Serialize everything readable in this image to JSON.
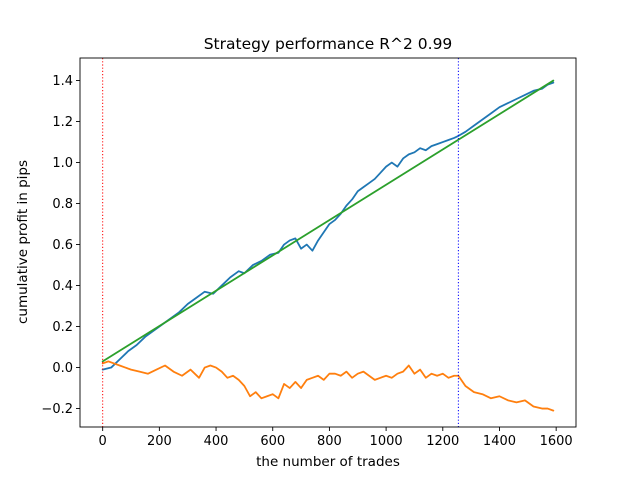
{
  "chart_data": {
    "type": "line",
    "title": "Strategy performance R^2 0.99",
    "xlabel": "the number of trades",
    "ylabel": "cumulative profit in pips",
    "xlim": [
      -80,
      1670
    ],
    "ylim": [
      -0.29,
      1.51
    ],
    "xticks": [
      0,
      200,
      400,
      600,
      800,
      1000,
      1200,
      1400,
      1600
    ],
    "xtick_labels": [
      "0",
      "200",
      "400",
      "600",
      "800",
      "1000",
      "1200",
      "1400",
      "1600"
    ],
    "yticks": [
      -0.2,
      0.0,
      0.2,
      0.4,
      0.6,
      0.8,
      1.0,
      1.2,
      1.4
    ],
    "ytick_labels": [
      "−0.2",
      "0.0",
      "0.2",
      "0.4",
      "0.6",
      "0.8",
      "1.0",
      "1.2",
      "1.4"
    ],
    "grid": false,
    "legend": false,
    "vlines": [
      {
        "x": 0,
        "color": "#ff0000",
        "style": "dotted"
      },
      {
        "x": 1255,
        "color": "#0000ff",
        "style": "dotted"
      }
    ],
    "series": [
      {
        "color": "#1f77b4",
        "x": [
          0,
          30,
          60,
          90,
          120,
          150,
          180,
          210,
          240,
          270,
          300,
          330,
          360,
          390,
          420,
          450,
          480,
          500,
          530,
          560,
          590,
          620,
          640,
          660,
          680,
          700,
          720,
          740,
          760,
          780,
          800,
          820,
          840,
          860,
          880,
          900,
          920,
          940,
          960,
          980,
          1000,
          1020,
          1040,
          1060,
          1080,
          1100,
          1120,
          1140,
          1160,
          1180,
          1200,
          1220,
          1240,
          1255,
          1280,
          1310,
          1340,
          1370,
          1400,
          1430,
          1460,
          1490,
          1520,
          1550,
          1570,
          1590
        ],
        "values": [
          -0.01,
          0.0,
          0.04,
          0.08,
          0.11,
          0.15,
          0.18,
          0.21,
          0.24,
          0.27,
          0.31,
          0.34,
          0.37,
          0.36,
          0.4,
          0.44,
          0.47,
          0.46,
          0.5,
          0.52,
          0.55,
          0.56,
          0.6,
          0.62,
          0.63,
          0.58,
          0.6,
          0.57,
          0.62,
          0.66,
          0.7,
          0.72,
          0.75,
          0.79,
          0.82,
          0.86,
          0.88,
          0.9,
          0.92,
          0.95,
          0.98,
          1.0,
          0.98,
          1.02,
          1.04,
          1.05,
          1.07,
          1.06,
          1.08,
          1.09,
          1.1,
          1.11,
          1.12,
          1.13,
          1.15,
          1.18,
          1.21,
          1.24,
          1.27,
          1.29,
          1.31,
          1.33,
          1.35,
          1.36,
          1.38,
          1.39
        ]
      },
      {
        "color": "#ff7f0e",
        "x": [
          0,
          20,
          40,
          60,
          80,
          100,
          130,
          160,
          190,
          220,
          250,
          280,
          310,
          340,
          360,
          380,
          400,
          420,
          440,
          460,
          480,
          500,
          520,
          540,
          560,
          580,
          600,
          620,
          640,
          660,
          680,
          700,
          720,
          740,
          760,
          780,
          800,
          820,
          840,
          860,
          880,
          900,
          920,
          940,
          960,
          980,
          1000,
          1020,
          1040,
          1060,
          1080,
          1100,
          1120,
          1140,
          1160,
          1180,
          1200,
          1220,
          1240,
          1255,
          1280,
          1310,
          1340,
          1370,
          1400,
          1430,
          1460,
          1490,
          1520,
          1550,
          1570,
          1590
        ],
        "values": [
          0.02,
          0.03,
          0.02,
          0.01,
          0.0,
          -0.01,
          -0.02,
          -0.03,
          -0.01,
          0.01,
          -0.02,
          -0.04,
          -0.01,
          -0.05,
          0.0,
          0.01,
          0.0,
          -0.02,
          -0.05,
          -0.04,
          -0.06,
          -0.09,
          -0.14,
          -0.12,
          -0.15,
          -0.14,
          -0.13,
          -0.15,
          -0.08,
          -0.1,
          -0.07,
          -0.1,
          -0.06,
          -0.05,
          -0.04,
          -0.06,
          -0.03,
          -0.03,
          -0.04,
          -0.02,
          -0.05,
          -0.03,
          -0.02,
          -0.04,
          -0.06,
          -0.05,
          -0.04,
          -0.05,
          -0.03,
          -0.02,
          0.01,
          -0.03,
          -0.01,
          -0.05,
          -0.03,
          -0.04,
          -0.03,
          -0.05,
          -0.04,
          -0.04,
          -0.09,
          -0.12,
          -0.13,
          -0.15,
          -0.14,
          -0.16,
          -0.17,
          -0.16,
          -0.19,
          -0.2,
          -0.2,
          -0.21
        ]
      },
      {
        "color": "#2ca02c",
        "x": [
          0,
          1590
        ],
        "values": [
          0.03,
          1.4
        ]
      }
    ]
  }
}
